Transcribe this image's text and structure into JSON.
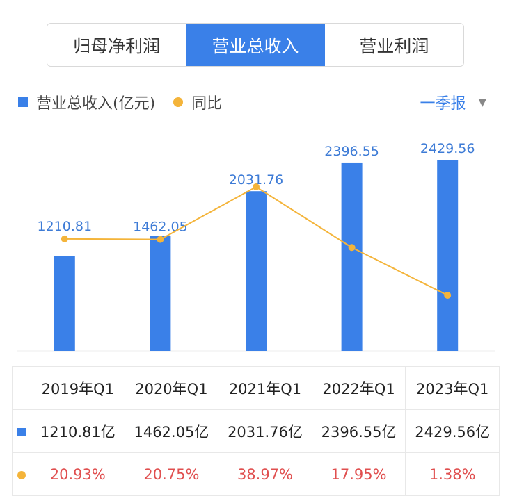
{
  "tabs": [
    {
      "label": "归母净利润",
      "active": false
    },
    {
      "label": "营业总收入",
      "active": true
    },
    {
      "label": "营业利润",
      "active": false
    }
  ],
  "legend": {
    "bar_label": "营业总收入(亿元)",
    "line_label": "同比"
  },
  "period_selector": {
    "label": "一季报"
  },
  "colors": {
    "bar": "#3a80e8",
    "line": "#f4b43a",
    "yoy_text": "#e04f4f",
    "active_tab": "#3a80e8"
  },
  "chart_data": {
    "type": "bar",
    "categories": [
      "2019年Q1",
      "2020年Q1",
      "2021年Q1",
      "2022年Q1",
      "2023年Q1"
    ],
    "series": [
      {
        "name": "营业总收入(亿元)",
        "type": "bar",
        "values": [
          1210.81,
          1462.05,
          2031.76,
          2396.55,
          2429.56
        ],
        "labels": [
          "1210.81",
          "1462.05",
          "2031.76",
          "2396.55",
          "2429.56"
        ]
      },
      {
        "name": "同比",
        "type": "line",
        "values": [
          20.93,
          20.75,
          38.97,
          17.95,
          1.38
        ]
      }
    ]
  },
  "table": {
    "headers": [
      "2019年Q1",
      "2020年Q1",
      "2021年Q1",
      "2022年Q1",
      "2023年Q1"
    ],
    "revenue": [
      "1210.81亿",
      "1462.05亿",
      "2031.76亿",
      "2396.55亿",
      "2429.56亿"
    ],
    "yoy": [
      "20.93%",
      "20.75%",
      "38.97%",
      "17.95%",
      "1.38%"
    ]
  }
}
